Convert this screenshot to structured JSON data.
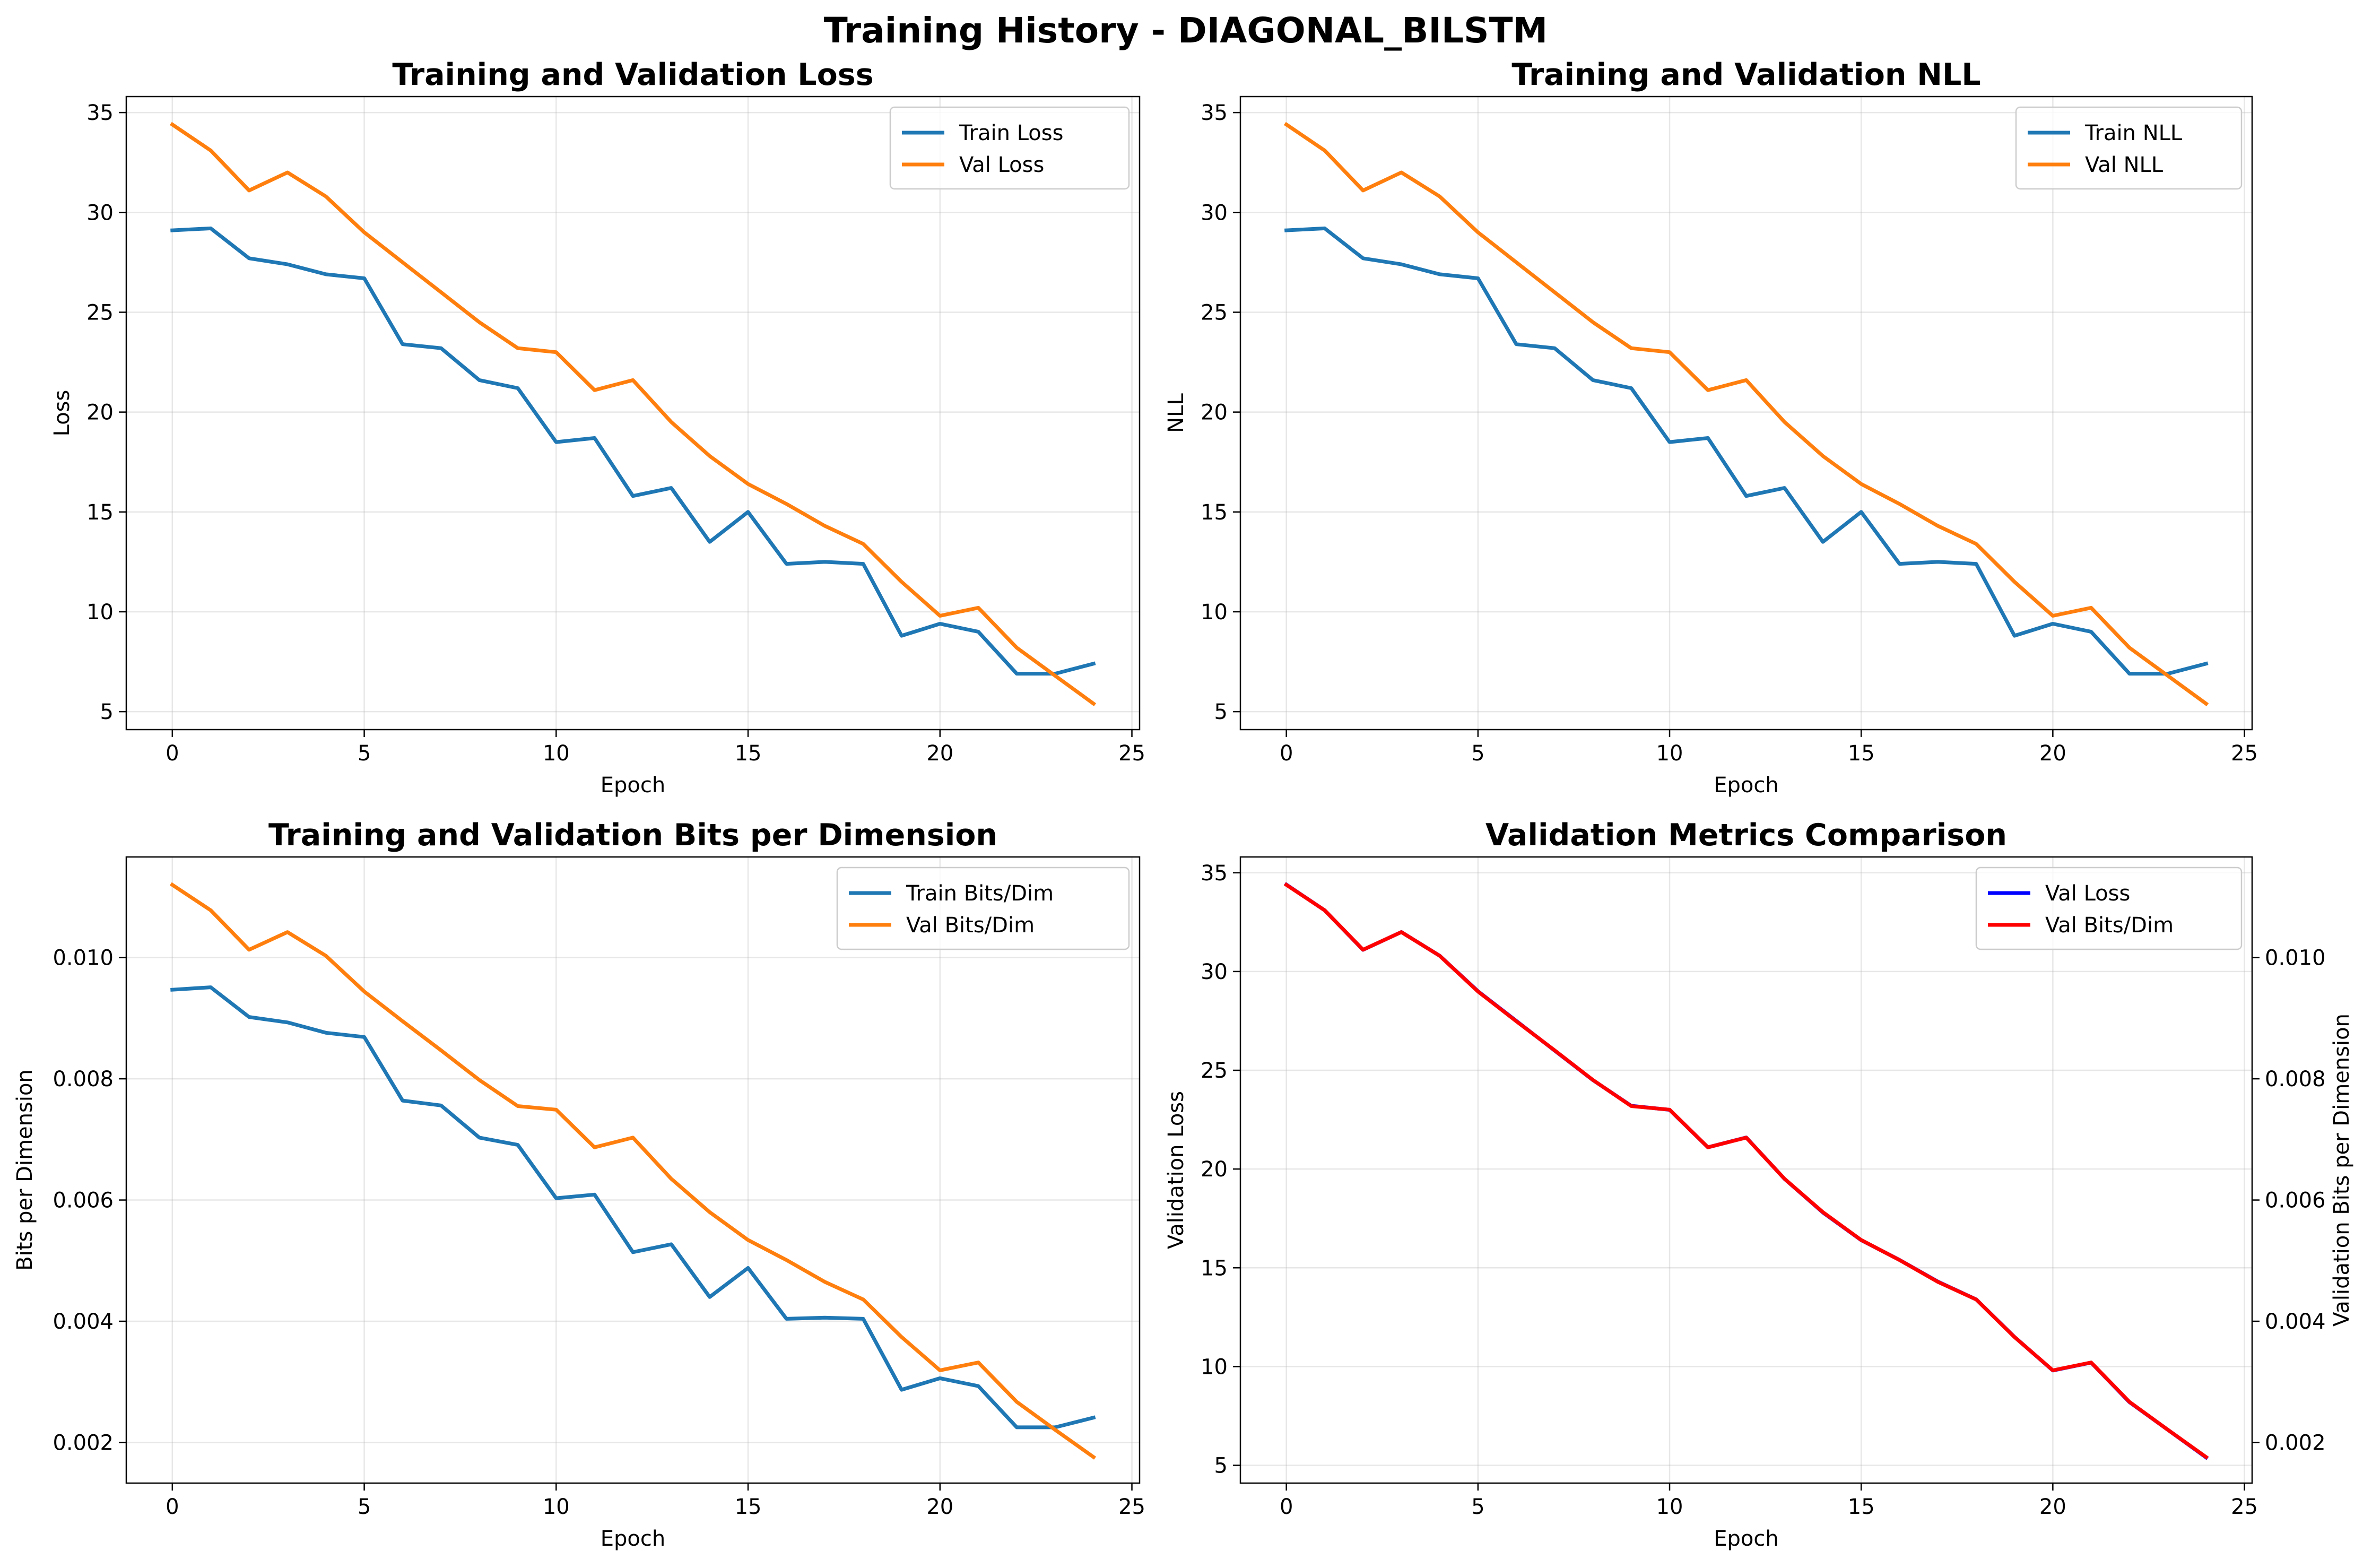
{
  "figure": {
    "suptitle": "Training History - DIAGONAL_BILSTM"
  },
  "chart_data": [
    {
      "type": "line",
      "title": "Training and Validation Loss",
      "xlabel": "Epoch",
      "ylabel": "Loss",
      "xlim": [
        -1.2,
        25.2
      ],
      "ylim": [
        4.1,
        35.8
      ],
      "xticks": [
        0,
        5,
        10,
        15,
        20,
        25
      ],
      "yticks": [
        5,
        10,
        15,
        20,
        25,
        30,
        35
      ],
      "ytick_labels": [
        "5",
        "10",
        "15",
        "20",
        "25",
        "30",
        "35"
      ],
      "grid": true,
      "legend": "top-right",
      "x": [
        0,
        1,
        2,
        3,
        4,
        5,
        6,
        7,
        8,
        9,
        10,
        11,
        12,
        13,
        14,
        15,
        16,
        17,
        18,
        19,
        20,
        21,
        22,
        23,
        24
      ],
      "series": [
        {
          "name": "Train Loss",
          "color": "#1f77b4",
          "values": [
            29.1,
            29.2,
            27.7,
            27.4,
            26.9,
            26.7,
            23.4,
            23.2,
            21.6,
            21.2,
            18.5,
            18.7,
            15.8,
            16.2,
            13.5,
            15.0,
            12.4,
            12.5,
            12.4,
            8.8,
            9.4,
            9.0,
            6.9,
            6.9,
            7.4
          ]
        },
        {
          "name": "Val Loss",
          "color": "#ff7f0e",
          "values": [
            34.4,
            33.1,
            31.1,
            32.0,
            30.8,
            29.0,
            27.5,
            26.0,
            24.5,
            23.2,
            23.0,
            21.1,
            21.6,
            19.5,
            17.8,
            16.4,
            15.4,
            14.3,
            13.4,
            11.5,
            9.8,
            10.2,
            8.2,
            6.8,
            5.4
          ]
        }
      ]
    },
    {
      "type": "line",
      "title": "Training and Validation NLL",
      "xlabel": "Epoch",
      "ylabel": "NLL",
      "xlim": [
        -1.2,
        25.2
      ],
      "ylim": [
        4.1,
        35.8
      ],
      "xticks": [
        0,
        5,
        10,
        15,
        20,
        25
      ],
      "yticks": [
        5,
        10,
        15,
        20,
        25,
        30,
        35
      ],
      "ytick_labels": [
        "5",
        "10",
        "15",
        "20",
        "25",
        "30",
        "35"
      ],
      "grid": true,
      "legend": "top-right",
      "x": [
        0,
        1,
        2,
        3,
        4,
        5,
        6,
        7,
        8,
        9,
        10,
        11,
        12,
        13,
        14,
        15,
        16,
        17,
        18,
        19,
        20,
        21,
        22,
        23,
        24
      ],
      "series": [
        {
          "name": "Train NLL",
          "color": "#1f77b4",
          "values": [
            29.1,
            29.2,
            27.7,
            27.4,
            26.9,
            26.7,
            23.4,
            23.2,
            21.6,
            21.2,
            18.5,
            18.7,
            15.8,
            16.2,
            13.5,
            15.0,
            12.4,
            12.5,
            12.4,
            8.8,
            9.4,
            9.0,
            6.9,
            6.9,
            7.4
          ]
        },
        {
          "name": "Val NLL",
          "color": "#ff7f0e",
          "values": [
            34.4,
            33.1,
            31.1,
            32.0,
            30.8,
            29.0,
            27.5,
            26.0,
            24.5,
            23.2,
            23.0,
            21.1,
            21.6,
            19.5,
            17.8,
            16.4,
            15.4,
            14.3,
            13.4,
            11.5,
            9.8,
            10.2,
            8.2,
            6.8,
            5.4
          ]
        }
      ]
    },
    {
      "type": "line",
      "title": "Training and Validation Bits per Dimension",
      "xlabel": "Epoch",
      "ylabel": "Bits per Dimension",
      "xlim": [
        -1.2,
        25.2
      ],
      "ylim": [
        0.00133,
        0.01166
      ],
      "xticks": [
        0,
        5,
        10,
        15,
        20,
        25
      ],
      "yticks": [
        0.002,
        0.004,
        0.006,
        0.008,
        0.01
      ],
      "ytick_labels": [
        "0.002",
        "0.004",
        "0.006",
        "0.008",
        "0.010"
      ],
      "grid": true,
      "legend": "top-right",
      "x": [
        0,
        1,
        2,
        3,
        4,
        5,
        6,
        7,
        8,
        9,
        10,
        11,
        12,
        13,
        14,
        15,
        16,
        17,
        18,
        19,
        20,
        21,
        22,
        23,
        24
      ],
      "series": [
        {
          "name": "Train Bits/Dim",
          "color": "#1f77b4",
          "values": [
            0.00947,
            0.00951,
            0.00902,
            0.00893,
            0.00876,
            0.00869,
            0.00764,
            0.00756,
            0.00703,
            0.00691,
            0.00603,
            0.00609,
            0.00514,
            0.00527,
            0.0044,
            0.00488,
            0.00404,
            0.00406,
            0.00404,
            0.00287,
            0.00306,
            0.00293,
            0.00225,
            0.00225,
            0.00241
          ]
        },
        {
          "name": "Val Bits/Dim",
          "color": "#ff7f0e",
          "values": [
            0.0112,
            0.01078,
            0.01013,
            0.01042,
            0.01003,
            0.00944,
            0.00895,
            0.00847,
            0.00798,
            0.00755,
            0.00749,
            0.00687,
            0.00703,
            0.00635,
            0.0058,
            0.00534,
            0.00501,
            0.00465,
            0.00436,
            0.00374,
            0.00319,
            0.00332,
            0.00267,
            0.00221,
            0.00176
          ]
        }
      ]
    },
    {
      "type": "line",
      "title": "Validation Metrics Comparison",
      "xlabel": "Epoch",
      "ylabel": "Validation Loss",
      "ylabel_color": "#0000ff",
      "y2label": "Validation Bits per Dimension",
      "y2label_color": "#ff0000",
      "xlim": [
        -1.2,
        25.2
      ],
      "ylim": [
        4.1,
        35.8
      ],
      "y2lim": [
        0.00133,
        0.01166
      ],
      "xticks": [
        0,
        5,
        10,
        15,
        20,
        25
      ],
      "yticks": [
        5,
        10,
        15,
        20,
        25,
        30,
        35
      ],
      "ytick_labels": [
        "5",
        "10",
        "15",
        "20",
        "25",
        "30",
        "35"
      ],
      "y2ticks": [
        0.002,
        0.004,
        0.006,
        0.008,
        0.01
      ],
      "y2tick_labels": [
        "0.002",
        "0.004",
        "0.006",
        "0.008",
        "0.010"
      ],
      "grid": true,
      "legend": "top-right",
      "x": [
        0,
        1,
        2,
        3,
        4,
        5,
        6,
        7,
        8,
        9,
        10,
        11,
        12,
        13,
        14,
        15,
        16,
        17,
        18,
        19,
        20,
        21,
        22,
        23,
        24
      ],
      "series": [
        {
          "name": "Val Loss",
          "color": "#0000ff",
          "axis": "left",
          "values": [
            34.4,
            33.1,
            31.1,
            32.0,
            30.8,
            29.0,
            27.5,
            26.0,
            24.5,
            23.2,
            23.0,
            21.1,
            21.6,
            19.5,
            17.8,
            16.4,
            15.4,
            14.3,
            13.4,
            11.5,
            9.8,
            10.2,
            8.2,
            6.8,
            5.4
          ]
        },
        {
          "name": "Val Bits/Dim",
          "color": "#ff0000",
          "axis": "right",
          "values": [
            0.0112,
            0.01078,
            0.01013,
            0.01042,
            0.01003,
            0.00944,
            0.00895,
            0.00847,
            0.00798,
            0.00755,
            0.00749,
            0.00687,
            0.00703,
            0.00635,
            0.0058,
            0.00534,
            0.00501,
            0.00465,
            0.00436,
            0.00374,
            0.00319,
            0.00332,
            0.00267,
            0.00221,
            0.00176
          ]
        }
      ]
    }
  ]
}
